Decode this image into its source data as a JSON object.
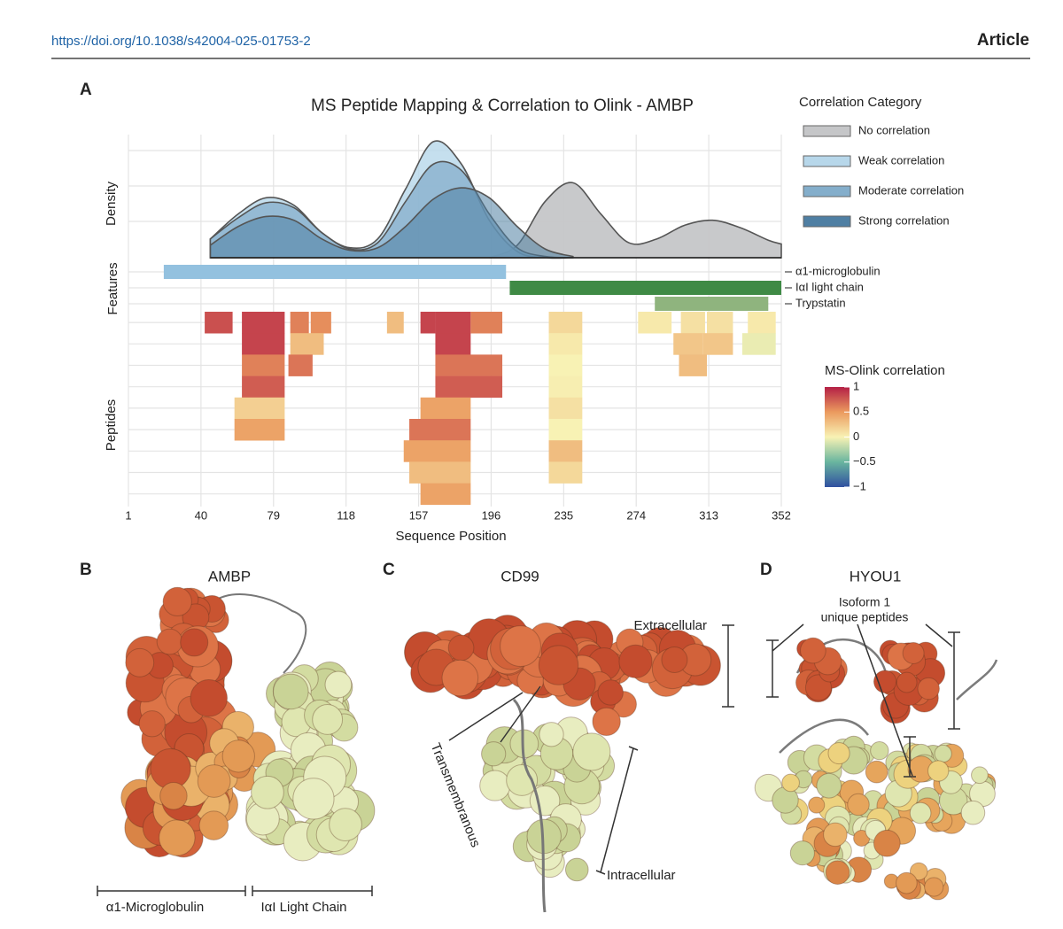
{
  "header": {
    "doi": "https://doi.org/10.1038/s42004-025-01753-2",
    "article": "Article"
  },
  "chart_data": {
    "type": "peptide-map",
    "panel": "A",
    "title": "MS Peptide Mapping & Correlation to Olink - AMBP",
    "xlabel": "Sequence Position",
    "xlim": [
      1,
      352
    ],
    "xticks": [
      1,
      40,
      79,
      118,
      157,
      196,
      235,
      274,
      313,
      352
    ],
    "grid": true,
    "density": {
      "label": "Density",
      "ylim": [
        0,
        1
      ],
      "x": [
        45,
        60,
        75,
        90,
        105,
        120,
        135,
        150,
        165,
        180,
        195,
        210,
        225,
        240,
        255,
        270,
        285,
        300,
        315,
        330,
        345,
        352
      ],
      "series": [
        {
          "name": "No correlation",
          "color": "#c5c6c8",
          "values": [
            null,
            null,
            null,
            null,
            null,
            null,
            null,
            null,
            null,
            null,
            0,
            0.1,
            0.45,
            0.6,
            0.35,
            0.12,
            0.15,
            0.26,
            0.3,
            0.24,
            0.14,
            0.11
          ]
        },
        {
          "name": "Weak correlation",
          "color": "#b7d7ea",
          "values": [
            0.15,
            0.35,
            0.48,
            0.42,
            0.2,
            0.08,
            0.15,
            0.55,
            0.93,
            0.75,
            0.3,
            0.05,
            0,
            0,
            null,
            null,
            null,
            null,
            null,
            null,
            null,
            null
          ]
        },
        {
          "name": "Moderate correlation",
          "color": "#84aecb",
          "values": [
            0.15,
            0.32,
            0.44,
            0.4,
            0.2,
            0.07,
            0.12,
            0.45,
            0.75,
            0.7,
            0.35,
            0.08,
            0.01,
            0,
            null,
            null,
            null,
            null,
            null,
            null,
            null,
            null
          ]
        },
        {
          "name": "Strong correlation",
          "color": "#4f7fa3",
          "values": [
            0.1,
            0.25,
            0.33,
            0.3,
            0.15,
            0.06,
            0.08,
            0.25,
            0.47,
            0.56,
            0.48,
            0.25,
            0.07,
            0.01,
            null,
            null,
            null,
            null,
            null,
            null,
            null,
            null
          ]
        }
      ]
    },
    "legend": {
      "title": "Correlation Category",
      "position": "right"
    },
    "features": {
      "label": "Features",
      "items": [
        {
          "name": "α1-microglobulin",
          "start": 20,
          "end": 204,
          "color": "#93c1df"
        },
        {
          "name": "IαI light chain",
          "start": 206,
          "end": 352,
          "color": "#3f8a45"
        },
        {
          "name": "Trypstatin",
          "start": 284,
          "end": 345,
          "color": "#8fb47e"
        }
      ]
    },
    "peptides": {
      "label": "Peptides",
      "rows": [
        [
          {
            "start": 42,
            "end": 57,
            "correlation": 0.8
          },
          {
            "start": 62,
            "end": 85,
            "correlation": 0.85
          },
          {
            "start": 88,
            "end": 98,
            "correlation": 0.6
          },
          {
            "start": 99,
            "end": 110,
            "correlation": 0.55
          },
          {
            "start": 140,
            "end": 149,
            "correlation": 0.3
          },
          {
            "start": 158,
            "end": 166,
            "correlation": 0.85
          },
          {
            "start": 166,
            "end": 185,
            "correlation": 0.85
          },
          {
            "start": 185,
            "end": 202,
            "correlation": 0.6
          },
          {
            "start": 227,
            "end": 245,
            "correlation": 0.15
          },
          {
            "start": 275,
            "end": 293,
            "correlation": 0.05
          },
          {
            "start": 298,
            "end": 311,
            "correlation": 0.1
          },
          {
            "start": 312,
            "end": 326,
            "correlation": 0.1
          },
          {
            "start": 334,
            "end": 349,
            "correlation": 0.05
          }
        ],
        [
          {
            "start": 62,
            "end": 85,
            "correlation": 0.85
          },
          {
            "start": 88,
            "end": 106,
            "correlation": 0.3
          },
          {
            "start": 166,
            "end": 185,
            "correlation": 0.85
          },
          {
            "start": 227,
            "end": 245,
            "correlation": 0.05
          },
          {
            "start": 294,
            "end": 310,
            "correlation": 0.25
          },
          {
            "start": 310,
            "end": 326,
            "correlation": 0.25
          },
          {
            "start": 331,
            "end": 349,
            "correlation": -0.05
          }
        ],
        [
          {
            "start": 62,
            "end": 85,
            "correlation": 0.6
          },
          {
            "start": 87,
            "end": 100,
            "correlation": 0.65
          },
          {
            "start": 166,
            "end": 202,
            "correlation": 0.65
          },
          {
            "start": 227,
            "end": 245,
            "correlation": 0
          },
          {
            "start": 297,
            "end": 312,
            "correlation": 0.3
          }
        ],
        [
          {
            "start": 62,
            "end": 85,
            "correlation": 0.75
          },
          {
            "start": 166,
            "end": 202,
            "correlation": 0.75
          },
          {
            "start": 227,
            "end": 245,
            "correlation": 0.02
          }
        ],
        [
          {
            "start": 58,
            "end": 85,
            "correlation": 0.2
          },
          {
            "start": 158,
            "end": 185,
            "correlation": 0.45
          },
          {
            "start": 227,
            "end": 245,
            "correlation": 0.1
          }
        ],
        [
          {
            "start": 58,
            "end": 85,
            "correlation": 0.45
          },
          {
            "start": 152,
            "end": 185,
            "correlation": 0.65
          },
          {
            "start": 227,
            "end": 245,
            "correlation": 0
          }
        ],
        [
          {
            "start": 149,
            "end": 185,
            "correlation": 0.45
          },
          {
            "start": 227,
            "end": 245,
            "correlation": 0.3
          }
        ],
        [
          {
            "start": 152,
            "end": 185,
            "correlation": 0.3
          },
          {
            "start": 227,
            "end": 245,
            "correlation": 0.15
          }
        ],
        [
          {
            "start": 158,
            "end": 185,
            "correlation": 0.45
          }
        ]
      ]
    },
    "colorbar": {
      "title": "MS-Olink correlation",
      "clim": [
        -1,
        1
      ],
      "ticks": [
        1,
        0.5,
        0,
        {
          "value": -0.5,
          "label": "−0.5"
        },
        {
          "value": -1,
          "label": "−1"
        }
      ],
      "colors": [
        "#3050a0",
        "#69b59f",
        "#f8f2b4",
        "#eb9a5e",
        "#b41f45"
      ]
    }
  },
  "panels": [
    {
      "letter": "B",
      "title": "AMBP",
      "labels": [
        "α1-Microglobulin",
        "IαI Light Chain"
      ]
    },
    {
      "letter": "C",
      "title": "CD99",
      "labels": [
        "Extracellular",
        "Transmembranous",
        "Intracellular"
      ]
    },
    {
      "letter": "D",
      "title": "HYOU1",
      "labels": [
        [
          "Isoform 1",
          "unique peptides"
        ]
      ]
    }
  ]
}
